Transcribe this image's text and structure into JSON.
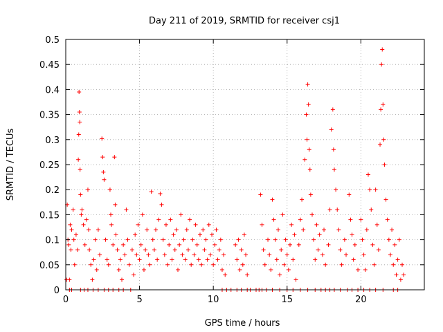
{
  "chart_data": {
    "type": "scatter",
    "title": "Day 211 of 2019, SRMTID for receiver csj1",
    "xlabel": "GPS time / hours",
    "ylabel": "SRMTID / TECUs",
    "xlim": [
      0,
      24.3
    ],
    "ylim": [
      0,
      0.5
    ],
    "x_ticks": [
      0,
      5,
      10,
      15,
      20
    ],
    "x_tick_labels": [
      "0",
      "5",
      "10",
      "15",
      "20"
    ],
    "y_ticks": [
      0,
      0.05,
      0.1,
      0.15,
      0.2,
      0.25,
      0.3,
      0.35,
      0.4,
      0.45,
      0.5
    ],
    "y_tick_labels": [
      "0",
      "0.05",
      "0.1",
      "0.15",
      "0.2",
      "0.25",
      "0.3",
      "0.35",
      "0.4",
      "0.45",
      "0.5"
    ],
    "grid": true,
    "marker": "plus",
    "color": "#ff0000",
    "series": [
      {
        "name": "csj1",
        "points": [
          [
            0.05,
            0.02
          ],
          [
            0.1,
            0.17
          ],
          [
            0.15,
            0.1
          ],
          [
            0.2,
            0.09
          ],
          [
            0.25,
            0.02
          ],
          [
            0.3,
            0.13
          ],
          [
            0.35,
            0.08
          ],
          [
            0.4,
            0.12
          ],
          [
            0.5,
            0.16
          ],
          [
            0.55,
            0.1
          ],
          [
            0.6,
            0.05
          ],
          [
            0.7,
            0.11
          ],
          [
            0.8,
            0.08
          ],
          [
            0.85,
            0.26
          ],
          [
            0.88,
            0.31
          ],
          [
            0.9,
            0.395
          ],
          [
            0.93,
            0.355
          ],
          [
            0.95,
            0.335
          ],
          [
            0.97,
            0.24
          ],
          [
            1.0,
            0.19
          ],
          [
            1.05,
            0.15
          ],
          [
            1.1,
            0.16
          ],
          [
            1.2,
            0.13
          ],
          [
            1.3,
            0.09
          ],
          [
            1.4,
            0.14
          ],
          [
            1.5,
            0.2
          ],
          [
            1.55,
            0.12
          ],
          [
            1.6,
            0.08
          ],
          [
            1.7,
            0.05
          ],
          [
            1.8,
            0.02
          ],
          [
            1.9,
            0.06
          ],
          [
            2.0,
            0.1
          ],
          [
            2.1,
            0.04
          ],
          [
            2.2,
            0.12
          ],
          [
            2.3,
            0.07
          ],
          [
            2.45,
            0.302
          ],
          [
            2.5,
            0.265
          ],
          [
            2.55,
            0.235
          ],
          [
            2.6,
            0.22
          ],
          [
            2.7,
            0.1
          ],
          [
            2.8,
            0.06
          ],
          [
            2.9,
            0.05
          ],
          [
            3.0,
            0.2
          ],
          [
            3.05,
            0.15
          ],
          [
            3.1,
            0.13
          ],
          [
            3.2,
            0.09
          ],
          [
            3.3,
            0.265
          ],
          [
            3.35,
            0.17
          ],
          [
            3.4,
            0.11
          ],
          [
            3.5,
            0.08
          ],
          [
            3.6,
            0.04
          ],
          [
            3.7,
            0.06
          ],
          [
            3.8,
            0.02
          ],
          [
            3.9,
            0.09
          ],
          [
            4.0,
            0.07
          ],
          [
            4.1,
            0.16
          ],
          [
            4.2,
            0.1
          ],
          [
            4.3,
            0.05
          ],
          [
            4.5,
            0.08
          ],
          [
            4.6,
            0.03
          ],
          [
            4.7,
            0.11
          ],
          [
            4.8,
            0.07
          ],
          [
            4.9,
            0.13
          ],
          [
            5.0,
            0.06
          ],
          [
            5.1,
            0.09
          ],
          [
            5.2,
            0.15
          ],
          [
            5.3,
            0.04
          ],
          [
            5.4,
            0.08
          ],
          [
            5.5,
            0.12
          ],
          [
            5.6,
            0.07
          ],
          [
            5.7,
            0.05
          ],
          [
            5.8,
            0.196
          ],
          [
            5.9,
            0.1
          ],
          [
            6.0,
            0.08
          ],
          [
            6.1,
            0.12
          ],
          [
            6.2,
            0.06
          ],
          [
            6.3,
            0.14
          ],
          [
            6.4,
            0.192
          ],
          [
            6.5,
            0.17
          ],
          [
            6.6,
            0.1
          ],
          [
            6.7,
            0.07
          ],
          [
            6.8,
            0.13
          ],
          [
            6.9,
            0.05
          ],
          [
            7.0,
            0.09
          ],
          [
            7.1,
            0.14
          ],
          [
            7.2,
            0.06
          ],
          [
            7.3,
            0.11
          ],
          [
            7.4,
            0.08
          ],
          [
            7.5,
            0.12
          ],
          [
            7.6,
            0.04
          ],
          [
            7.7,
            0.09
          ],
          [
            7.8,
            0.15
          ],
          [
            7.9,
            0.07
          ],
          [
            8.0,
            0.1
          ],
          [
            8.1,
            0.06
          ],
          [
            8.2,
            0.12
          ],
          [
            8.3,
            0.08
          ],
          [
            8.4,
            0.14
          ],
          [
            8.5,
            0.05
          ],
          [
            8.6,
            0.1
          ],
          [
            8.7,
            0.07
          ],
          [
            8.8,
            0.13
          ],
          [
            8.9,
            0.09
          ],
          [
            9.0,
            0.06
          ],
          [
            9.1,
            0.11
          ],
          [
            9.2,
            0.05
          ],
          [
            9.3,
            0.12
          ],
          [
            9.4,
            0.08
          ],
          [
            9.5,
            0.1
          ],
          [
            9.6,
            0.06
          ],
          [
            9.7,
            0.13
          ],
          [
            9.8,
            0.07
          ],
          [
            9.9,
            0.11
          ],
          [
            10.0,
            0.05
          ],
          [
            10.1,
            0.09
          ],
          [
            10.2,
            0.12
          ],
          [
            10.3,
            0.06
          ],
          [
            10.4,
            0.08
          ],
          [
            10.5,
            0.1
          ],
          [
            10.6,
            0.04
          ],
          [
            10.7,
            0.07
          ],
          [
            10.8,
            0.03
          ],
          [
            11.5,
            0.09
          ],
          [
            11.6,
            0.06
          ],
          [
            11.7,
            0.1
          ],
          [
            11.8,
            0.04
          ],
          [
            11.9,
            0.08
          ],
          [
            12.0,
            0.05
          ],
          [
            12.1,
            0.11
          ],
          [
            12.2,
            0.07
          ],
          [
            12.3,
            0.03
          ],
          [
            13.2,
            0.19
          ],
          [
            13.3,
            0.13
          ],
          [
            13.4,
            0.08
          ],
          [
            13.5,
            0.05
          ],
          [
            13.7,
            0.1
          ],
          [
            13.8,
            0.07
          ],
          [
            13.9,
            0.04
          ],
          [
            14.0,
            0.18
          ],
          [
            14.1,
            0.14
          ],
          [
            14.2,
            0.1
          ],
          [
            14.3,
            0.06
          ],
          [
            14.4,
            0.12
          ],
          [
            14.5,
            0.03
          ],
          [
            14.6,
            0.08
          ],
          [
            14.7,
            0.15
          ],
          [
            14.8,
            0.05
          ],
          [
            14.9,
            0.1
          ],
          [
            15.0,
            0.07
          ],
          [
            15.1,
            0.04
          ],
          [
            15.2,
            0.09
          ],
          [
            15.3,
            0.13
          ],
          [
            15.4,
            0.06
          ],
          [
            15.5,
            0.11
          ],
          [
            15.6,
            0.02
          ],
          [
            15.8,
            0.09
          ],
          [
            15.9,
            0.14
          ],
          [
            16.0,
            0.18
          ],
          [
            16.1,
            0.12
          ],
          [
            16.2,
            0.26
          ],
          [
            16.3,
            0.35
          ],
          [
            16.35,
            0.3
          ],
          [
            16.4,
            0.41
          ],
          [
            16.45,
            0.37
          ],
          [
            16.5,
            0.28
          ],
          [
            16.55,
            0.24
          ],
          [
            16.6,
            0.19
          ],
          [
            16.7,
            0.15
          ],
          [
            16.8,
            0.1
          ],
          [
            16.9,
            0.06
          ],
          [
            17.0,
            0.13
          ],
          [
            17.1,
            0.08
          ],
          [
            17.2,
            0.11
          ],
          [
            17.4,
            0.07
          ],
          [
            17.5,
            0.12
          ],
          [
            17.6,
            0.05
          ],
          [
            17.8,
            0.09
          ],
          [
            17.9,
            0.16
          ],
          [
            18.0,
            0.32
          ],
          [
            18.1,
            0.36
          ],
          [
            18.15,
            0.28
          ],
          [
            18.2,
            0.24
          ],
          [
            18.3,
            0.2
          ],
          [
            18.4,
            0.16
          ],
          [
            18.5,
            0.12
          ],
          [
            18.6,
            0.08
          ],
          [
            18.7,
            0.05
          ],
          [
            18.9,
            0.1
          ],
          [
            19.0,
            0.07
          ],
          [
            19.2,
            0.19
          ],
          [
            19.3,
            0.14
          ],
          [
            19.4,
            0.11
          ],
          [
            19.5,
            0.06
          ],
          [
            19.6,
            0.09
          ],
          [
            19.8,
            0.04
          ],
          [
            20.0,
            0.14
          ],
          [
            20.1,
            0.1
          ],
          [
            20.2,
            0.07
          ],
          [
            20.3,
            0.04
          ],
          [
            20.4,
            0.12
          ],
          [
            20.5,
            0.23
          ],
          [
            20.6,
            0.2
          ],
          [
            20.7,
            0.16
          ],
          [
            20.8,
            0.09
          ],
          [
            20.9,
            0.05
          ],
          [
            21.0,
            0.2
          ],
          [
            21.1,
            0.13
          ],
          [
            21.2,
            0.08
          ],
          [
            21.3,
            0.29
          ],
          [
            21.35,
            0.36
          ],
          [
            21.4,
            0.45
          ],
          [
            21.45,
            0.48
          ],
          [
            21.5,
            0.37
          ],
          [
            21.55,
            0.3
          ],
          [
            21.6,
            0.25
          ],
          [
            21.7,
            0.18
          ],
          [
            21.8,
            0.14
          ],
          [
            21.9,
            0.1
          ],
          [
            22.0,
            0.07
          ],
          [
            22.1,
            0.12
          ],
          [
            22.2,
            0.05
          ],
          [
            22.3,
            0.09
          ],
          [
            22.4,
            0.03
          ],
          [
            22.5,
            0.06
          ],
          [
            22.6,
            0.1
          ],
          [
            22.7,
            0.02
          ],
          [
            22.8,
            0.05
          ],
          [
            22.9,
            0.03
          ],
          [
            0.25,
            0
          ],
          [
            0.4,
            0
          ],
          [
            1.0,
            0
          ],
          [
            1.25,
            0
          ],
          [
            1.5,
            0
          ],
          [
            1.85,
            0
          ],
          [
            2.2,
            0
          ],
          [
            2.6,
            0
          ],
          [
            2.9,
            0
          ],
          [
            3.2,
            0
          ],
          [
            3.6,
            0
          ],
          [
            3.9,
            0
          ],
          [
            4.4,
            0
          ],
          [
            10.6,
            0
          ],
          [
            10.9,
            0
          ],
          [
            11.2,
            0
          ],
          [
            11.6,
            0
          ],
          [
            11.9,
            0
          ],
          [
            12.3,
            0
          ],
          [
            12.5,
            0
          ],
          [
            12.9,
            0
          ],
          [
            13.1,
            0
          ],
          [
            13.3,
            0
          ],
          [
            13.6,
            0
          ],
          [
            14.0,
            0
          ],
          [
            14.5,
            0
          ],
          [
            15.0,
            0
          ],
          [
            15.4,
            0
          ],
          [
            15.9,
            0
          ],
          [
            16.4,
            0
          ],
          [
            16.9,
            0
          ],
          [
            17.3,
            0
          ],
          [
            17.6,
            0
          ],
          [
            17.9,
            0
          ],
          [
            18.2,
            0
          ],
          [
            18.6,
            0
          ],
          [
            19.1,
            0
          ],
          [
            19.4,
            0
          ],
          [
            19.8,
            0
          ],
          [
            20.2,
            0
          ],
          [
            20.6,
            0
          ],
          [
            21.0,
            0
          ],
          [
            21.5,
            0
          ],
          [
            22.2,
            0
          ],
          [
            22.5,
            0
          ]
        ]
      }
    ]
  }
}
